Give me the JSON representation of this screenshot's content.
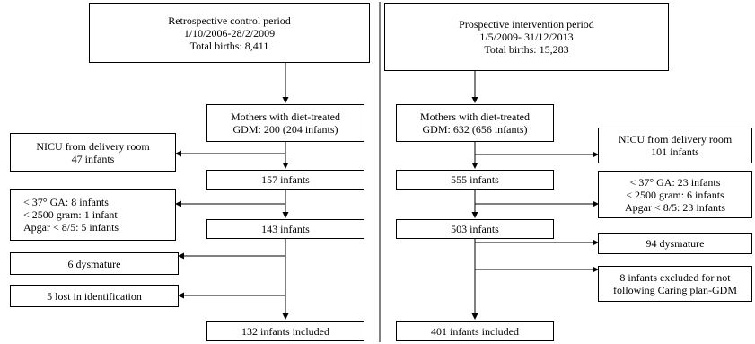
{
  "left": {
    "period": {
      "line1": "Retrospective control period",
      "line2": "1/10/2006-28/2/2009",
      "line3": "Total births: 8,411"
    },
    "mothers": {
      "line1": "Mothers with diet-treated",
      "line2": "GDM: 200 (204 infants)"
    },
    "nicu": {
      "line1": "NICU from delivery room",
      "line2": "47 infants"
    },
    "step1": "157 infants",
    "excl": {
      "line1": "< 37° GA: 8 infants",
      "line2": "< 2500 gram: 1 infant",
      "line3": "Apgar < 8/5: 5 infants"
    },
    "step2": "143 infants",
    "dysmature": "6 dysmature",
    "lost": "5 lost in identification",
    "included": "132 infants included"
  },
  "right": {
    "period": {
      "line1": "Prospective intervention period",
      "line2": "1/5/2009- 31/12/2013",
      "line3": "Total births: 15,283"
    },
    "mothers": {
      "line1": "Mothers with diet-treated",
      "line2": "GDM: 632 (656 infants)"
    },
    "nicu": {
      "line1": "NICU from delivery room",
      "line2": "101 infants"
    },
    "step1": "555 infants",
    "excl": {
      "line1": "< 37° GA: 23 infants",
      "line2": "< 2500 gram: 6 infants",
      "line3": "Apgar < 8/5: 23 infants"
    },
    "step2": "503 infants",
    "dysmature": "94 dysmature",
    "excluded": {
      "line1": "8 infants excluded for not",
      "line2": "following Caring plan-GDM"
    },
    "included": "401 infants included"
  }
}
